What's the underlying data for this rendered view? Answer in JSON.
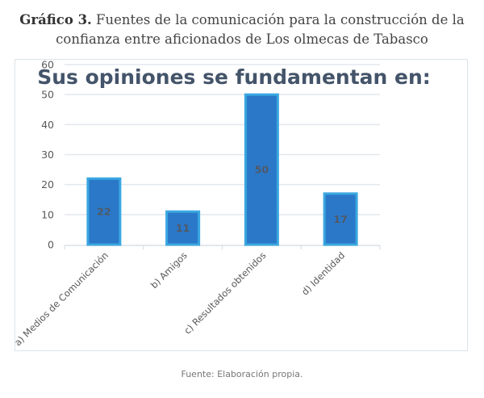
{
  "caption": {
    "label": "Gráfico 3.",
    "line1": "Fuentes de la comunicación para la construcción de la",
    "line2": "confianza entre aficionados de Los olmecas de Tabasco"
  },
  "source": "Fuente: Elaboración propia.",
  "colors": {
    "bar_fill": "#2b78c9",
    "bar_border": "#3aa7e0",
    "grid": "#e3e8ee",
    "title": "#44546a"
  },
  "chart_data": {
    "type": "bar",
    "title": "Sus opiniones se fundamentan en:",
    "categories": [
      "a) Medios de Comunicación",
      "b) Amigos",
      "c) Resultados obtenidos",
      "d) Identidad"
    ],
    "values": [
      22,
      11,
      50,
      17
    ],
    "data_labels": [
      "22",
      "11",
      "50",
      "17"
    ],
    "xlabel": "",
    "ylabel": "",
    "ylim": [
      0,
      60
    ],
    "yticks": [
      0,
      10,
      20,
      30,
      40,
      50,
      60
    ],
    "ytick_labels": [
      "0",
      "10",
      "20",
      "30",
      "40",
      "50",
      "60"
    ],
    "grid": true,
    "legend": "none"
  }
}
